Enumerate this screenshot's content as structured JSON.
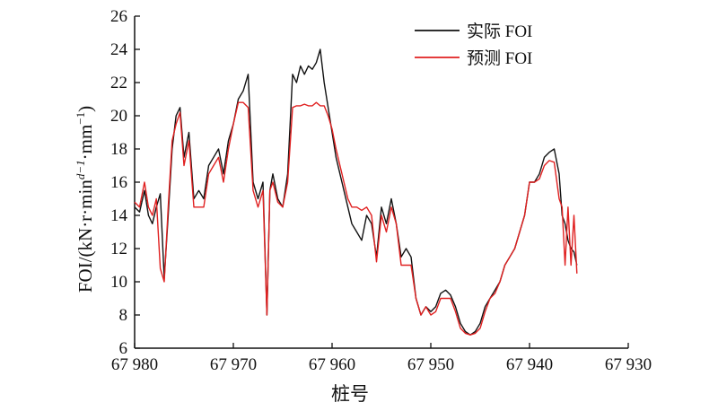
{
  "chart_data": {
    "type": "line",
    "xlabel": "桩号",
    "ylabel": "FOI/(kN·r·min^{d−1}·mm^{−1})",
    "ylabel_parts": {
      "main": "FOI/(kN·r·min",
      "sup1": "d−1",
      "mid": "·mm",
      "sup2": "−1",
      "end": ")"
    },
    "xlim": [
      67980,
      67930
    ],
    "ylim": [
      6,
      26
    ],
    "x_ticks": [
      67980,
      67970,
      67960,
      67950,
      67940,
      67930
    ],
    "x_tick_labels": [
      "67 980",
      "67 970",
      "67 960",
      "67 950",
      "67 940",
      "67 930"
    ],
    "y_ticks": [
      6,
      8,
      10,
      12,
      14,
      16,
      18,
      20,
      22,
      24,
      26
    ],
    "y_tick_labels": [
      "6",
      "8",
      "10",
      "12",
      "14",
      "16",
      "18",
      "20",
      "22",
      "24",
      "26"
    ],
    "legend_position": "top-right",
    "series": [
      {
        "name": "实际 FOI",
        "color": "#111111",
        "x": [
          67980,
          67979.5,
          67979,
          67978.6,
          67978.2,
          67977.8,
          67977.4,
          67977,
          67976.6,
          67976.2,
          67975.8,
          67975.4,
          67975,
          67974.5,
          67974,
          67973.5,
          67973,
          67972.5,
          67972,
          67971.5,
          67971,
          67970.5,
          67970,
          67969.5,
          67969,
          67968.5,
          67968,
          67967.5,
          67967,
          67966.6,
          67966.3,
          67966,
          67965.5,
          67965,
          67964.5,
          67964,
          67963.6,
          67963.2,
          67962.8,
          67962.4,
          67962,
          67961.6,
          67961.2,
          67960.8,
          67960.4,
          67960,
          67959.6,
          67959.2,
          67958.8,
          67958.4,
          67958,
          67957.5,
          67957,
          67956.5,
          67956,
          67955.5,
          67955,
          67954.5,
          67954,
          67953.5,
          67953,
          67952.5,
          67952,
          67951.5,
          67951,
          67950.5,
          67950,
          67949.5,
          67949,
          67948.5,
          67948,
          67947.5,
          67947,
          67946.5,
          67946,
          67945.5,
          67945,
          67944.5,
          67944,
          67943.5,
          67943,
          67942.5,
          67942,
          67941.5,
          67941,
          67940.5,
          67940,
          67939.5,
          67939,
          67938.5,
          67938,
          67937.5,
          67937,
          67936.7,
          67936.4,
          67936.1,
          67935.8,
          67935.5,
          67935.2
        ],
        "y": [
          14.5,
          14.2,
          15.5,
          14.0,
          13.5,
          14.5,
          15.3,
          10.2,
          14.0,
          18.0,
          20.0,
          20.5,
          17.5,
          19.0,
          15.0,
          15.5,
          15.0,
          17.0,
          17.5,
          18.0,
          16.5,
          18.5,
          19.5,
          21.0,
          21.5,
          22.5,
          16.0,
          15.0,
          16.0,
          8.0,
          15.5,
          16.5,
          15.0,
          14.5,
          16.5,
          22.5,
          22.0,
          23.0,
          22.5,
          23.0,
          22.8,
          23.2,
          24.0,
          22.0,
          20.5,
          19.0,
          17.5,
          16.5,
          15.5,
          14.5,
          13.5,
          13.0,
          12.5,
          14.0,
          13.5,
          11.5,
          14.5,
          13.5,
          15.0,
          13.5,
          11.5,
          12.0,
          11.5,
          9.0,
          8.0,
          8.5,
          8.2,
          8.5,
          9.3,
          9.5,
          9.2,
          8.5,
          7.5,
          7.0,
          6.8,
          7.0,
          7.5,
          8.5,
          9.0,
          9.5,
          10.0,
          11.0,
          11.5,
          12.0,
          13.0,
          14.0,
          16.0,
          16.0,
          16.5,
          17.5,
          17.8,
          18.0,
          16.5,
          14.0,
          13.5,
          12.5,
          12.0,
          11.8,
          11.0
        ]
      },
      {
        "name": "预测 FOI",
        "color": "#e02020",
        "x": [
          67980,
          67979.5,
          67979,
          67978.6,
          67978.2,
          67977.8,
          67977.4,
          67977,
          67976.6,
          67976.2,
          67975.8,
          67975.4,
          67975,
          67974.5,
          67974,
          67973.5,
          67973,
          67972.5,
          67972,
          67971.5,
          67971,
          67970.5,
          67970,
          67969.5,
          67969,
          67968.5,
          67968,
          67967.5,
          67967,
          67966.6,
          67966.3,
          67966,
          67965.5,
          67965,
          67964.5,
          67964,
          67963.6,
          67963.2,
          67962.8,
          67962.4,
          67962,
          67961.6,
          67961.2,
          67960.8,
          67960.4,
          67960,
          67959.6,
          67959.2,
          67958.8,
          67958.4,
          67958,
          67957.5,
          67957,
          67956.5,
          67956,
          67955.5,
          67955,
          67954.5,
          67954,
          67953.5,
          67953,
          67952.5,
          67952,
          67951.5,
          67951,
          67950.5,
          67950,
          67949.5,
          67949,
          67948.5,
          67948,
          67947.5,
          67947,
          67946.5,
          67946,
          67945.5,
          67945,
          67944.5,
          67944,
          67943.5,
          67943,
          67942.5,
          67942,
          67941.5,
          67941,
          67940.5,
          67940,
          67939.5,
          67939,
          67938.5,
          67938,
          67937.5,
          67937,
          67936.7,
          67936.4,
          67936.1,
          67935.8,
          67935.5,
          67935.2
        ],
        "y": [
          14.8,
          14.5,
          16.0,
          14.5,
          14.0,
          15.0,
          10.8,
          10.0,
          14.5,
          18.5,
          19.5,
          20.2,
          17.0,
          18.5,
          14.5,
          14.5,
          14.5,
          16.5,
          17.0,
          17.5,
          16.0,
          18.0,
          19.5,
          20.8,
          20.8,
          20.5,
          15.5,
          14.5,
          15.5,
          8.0,
          15.5,
          16.0,
          14.8,
          14.5,
          16.0,
          20.5,
          20.6,
          20.6,
          20.7,
          20.6,
          20.6,
          20.8,
          20.6,
          20.6,
          20.0,
          19.2,
          18.0,
          17.0,
          16.0,
          15.0,
          14.5,
          14.5,
          14.3,
          14.5,
          14.0,
          11.2,
          14.0,
          13.0,
          14.5,
          13.5,
          11.0,
          11.0,
          11.0,
          9.0,
          8.0,
          8.5,
          8.0,
          8.2,
          9.0,
          9.0,
          9.0,
          8.2,
          7.2,
          6.9,
          6.8,
          6.9,
          7.2,
          8.2,
          9.0,
          9.3,
          10.0,
          11.0,
          11.5,
          12.0,
          13.0,
          14.0,
          16.0,
          16.0,
          16.2,
          17.0,
          17.3,
          17.2,
          15.0,
          14.5,
          11.0,
          14.5,
          11.0,
          14.0,
          10.5
        ]
      }
    ]
  }
}
